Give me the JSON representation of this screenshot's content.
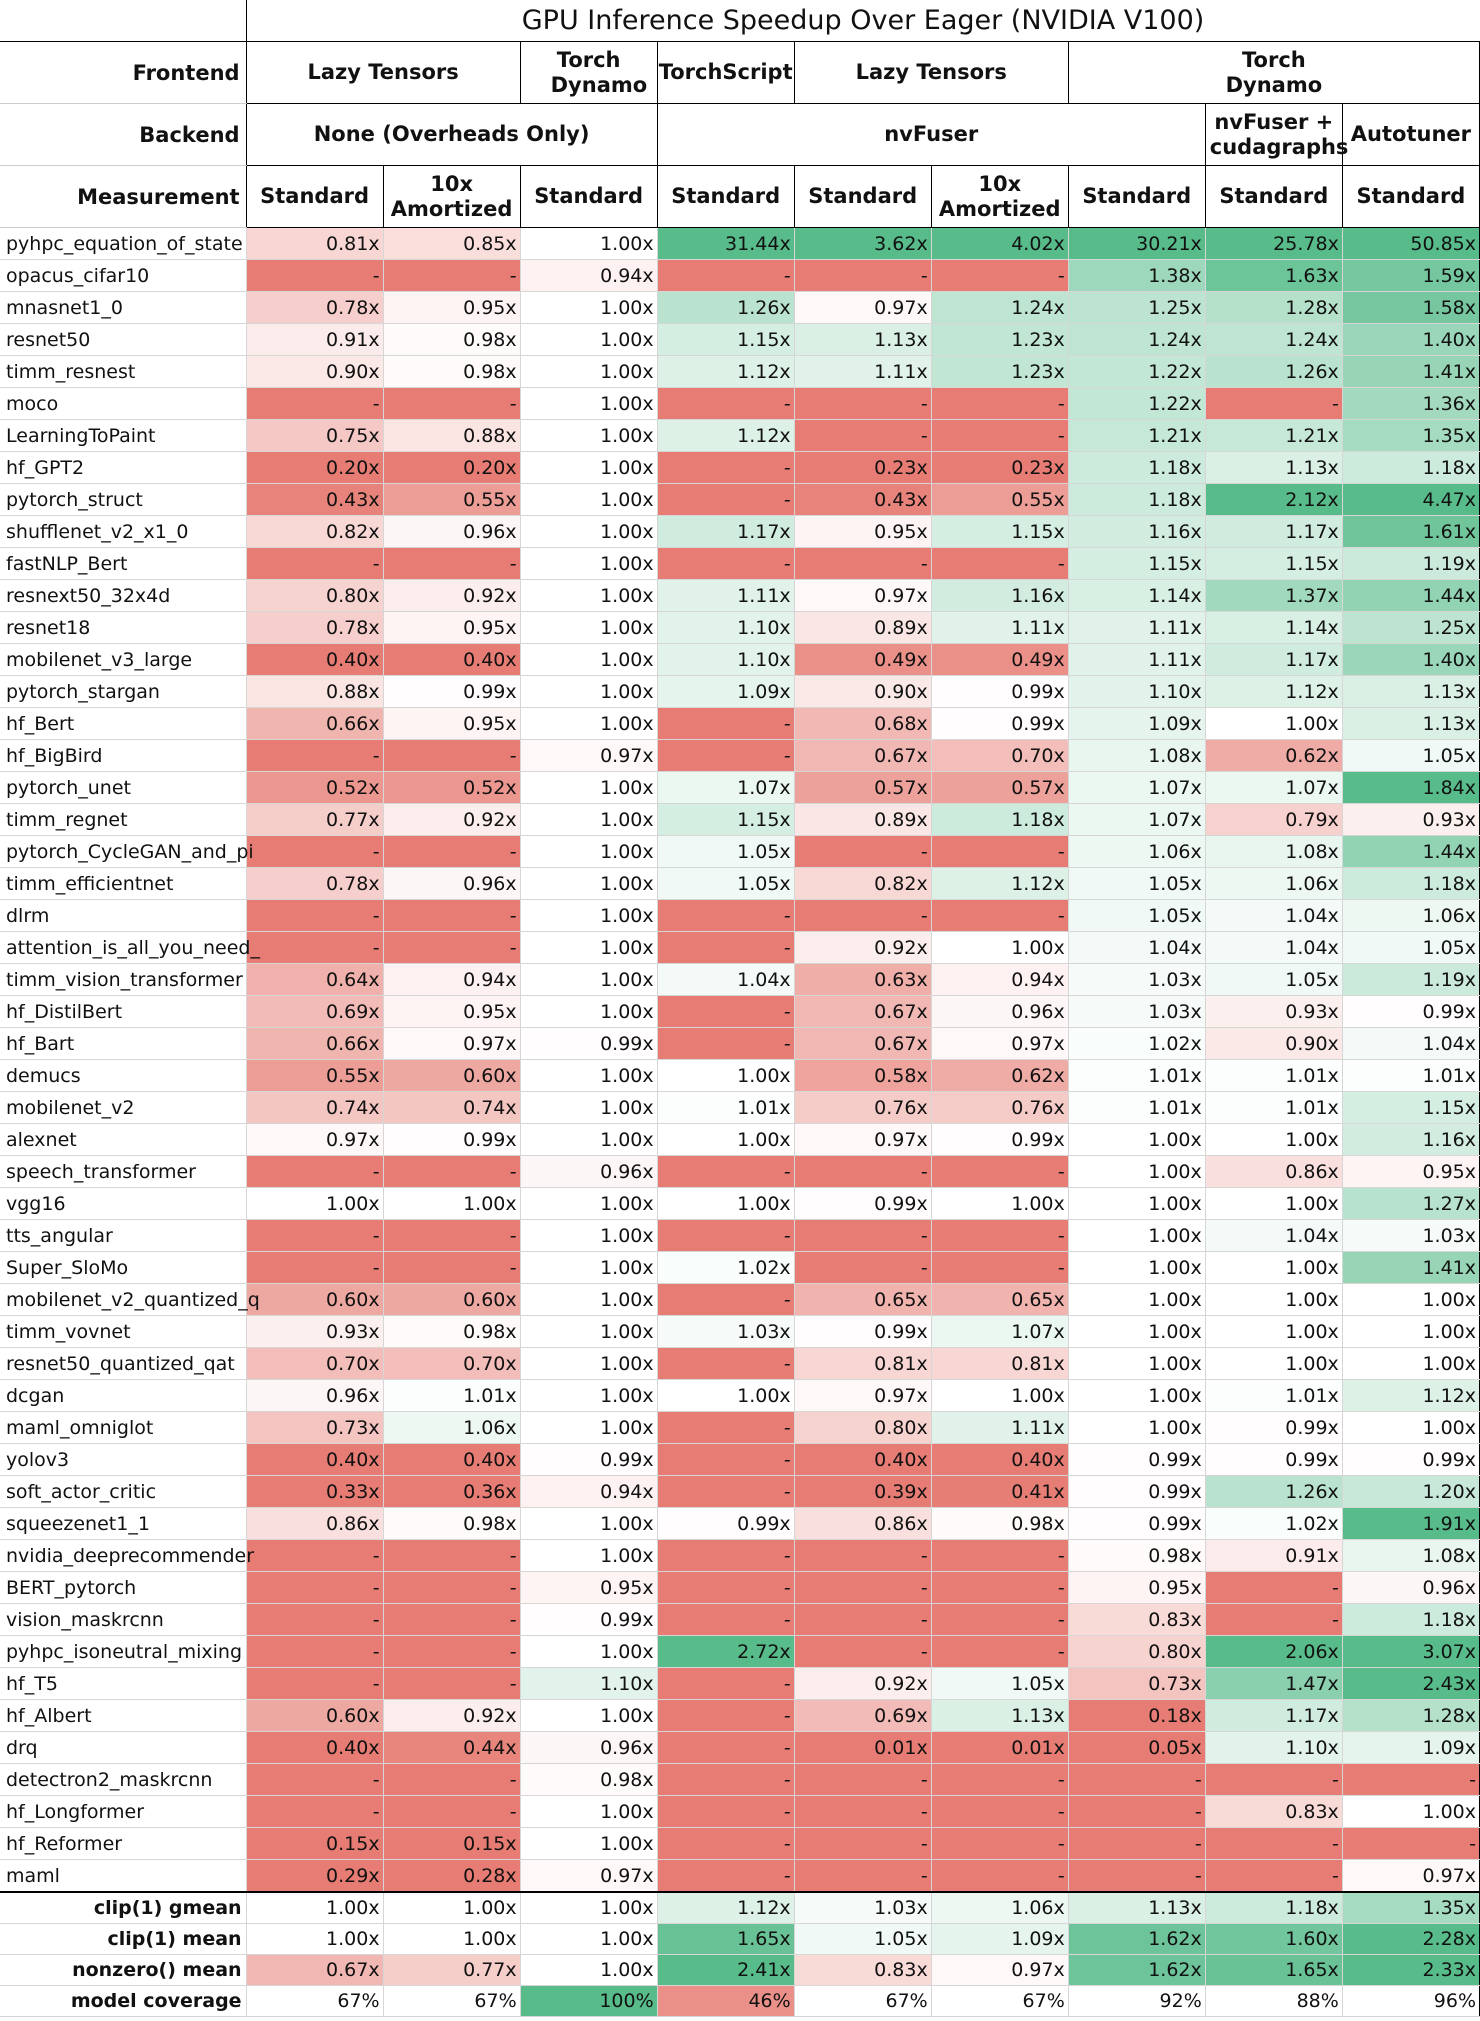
{
  "title": "GPU Inference Speedup Over Eager (NVIDIA V100)",
  "row_labels": {
    "frontend": "Frontend",
    "backend": "Backend",
    "measurement": "Measurement"
  },
  "frontend": [
    {
      "label": "Lazy Tensors",
      "span": 2
    },
    {
      "label": "Torch Dynamo",
      "span": 1
    },
    {
      "label": "TorchScript",
      "span": 1
    },
    {
      "label": "Lazy Tensors",
      "span": 2
    },
    {
      "label": "Torch Dynamo",
      "span": 3
    }
  ],
  "backend": [
    {
      "label": "None (Overheads Only)",
      "span": 3
    },
    {
      "label": "nvFuser",
      "span": 4
    },
    {
      "label": "nvFuser + cudagraphs",
      "span": 1
    },
    {
      "label": "Autotuner",
      "span": 1
    }
  ],
  "measurement": [
    "Standard",
    "10x Amortized",
    "Standard",
    "Standard",
    "Standard",
    "10x Amortized",
    "Standard",
    "Standard",
    "Standard"
  ],
  "rows": [
    [
      "pyhpc_equation_of_state",
      "0.81x",
      "0.85x",
      "1.00x",
      "31.44x",
      "3.62x",
      "4.02x",
      "30.21x",
      "25.78x",
      "50.85x"
    ],
    [
      "opacus_cifar10",
      "-",
      "-",
      "0.94x",
      "-",
      "-",
      "-",
      "1.38x",
      "1.63x",
      "1.59x"
    ],
    [
      "mnasnet1_0",
      "0.78x",
      "0.95x",
      "1.00x",
      "1.26x",
      "0.97x",
      "1.24x",
      "1.25x",
      "1.28x",
      "1.58x"
    ],
    [
      "resnet50",
      "0.91x",
      "0.98x",
      "1.00x",
      "1.15x",
      "1.13x",
      "1.23x",
      "1.24x",
      "1.24x",
      "1.40x"
    ],
    [
      "timm_resnest",
      "0.90x",
      "0.98x",
      "1.00x",
      "1.12x",
      "1.11x",
      "1.23x",
      "1.22x",
      "1.26x",
      "1.41x"
    ],
    [
      "moco",
      "-",
      "-",
      "1.00x",
      "-",
      "-",
      "-",
      "1.22x",
      "-",
      "1.36x"
    ],
    [
      "LearningToPaint",
      "0.75x",
      "0.88x",
      "1.00x",
      "1.12x",
      "-",
      "-",
      "1.21x",
      "1.21x",
      "1.35x"
    ],
    [
      "hf_GPT2",
      "0.20x",
      "0.20x",
      "1.00x",
      "-",
      "0.23x",
      "0.23x",
      "1.18x",
      "1.13x",
      "1.18x"
    ],
    [
      "pytorch_struct",
      "0.43x",
      "0.55x",
      "1.00x",
      "-",
      "0.43x",
      "0.55x",
      "1.18x",
      "2.12x",
      "4.47x"
    ],
    [
      "shufflenet_v2_x1_0",
      "0.82x",
      "0.96x",
      "1.00x",
      "1.17x",
      "0.95x",
      "1.15x",
      "1.16x",
      "1.17x",
      "1.61x"
    ],
    [
      "fastNLP_Bert",
      "-",
      "-",
      "1.00x",
      "-",
      "-",
      "-",
      "1.15x",
      "1.15x",
      "1.19x"
    ],
    [
      "resnext50_32x4d",
      "0.80x",
      "0.92x",
      "1.00x",
      "1.11x",
      "0.97x",
      "1.16x",
      "1.14x",
      "1.37x",
      "1.44x"
    ],
    [
      "resnet18",
      "0.78x",
      "0.95x",
      "1.00x",
      "1.10x",
      "0.89x",
      "1.11x",
      "1.11x",
      "1.14x",
      "1.25x"
    ],
    [
      "mobilenet_v3_large",
      "0.40x",
      "0.40x",
      "1.00x",
      "1.10x",
      "0.49x",
      "0.49x",
      "1.11x",
      "1.17x",
      "1.40x"
    ],
    [
      "pytorch_stargan",
      "0.88x",
      "0.99x",
      "1.00x",
      "1.09x",
      "0.90x",
      "0.99x",
      "1.10x",
      "1.12x",
      "1.13x"
    ],
    [
      "hf_Bert",
      "0.66x",
      "0.95x",
      "1.00x",
      "-",
      "0.68x",
      "0.99x",
      "1.09x",
      "1.00x",
      "1.13x"
    ],
    [
      "hf_BigBird",
      "-",
      "-",
      "0.97x",
      "-",
      "0.67x",
      "0.70x",
      "1.08x",
      "0.62x",
      "1.05x"
    ],
    [
      "pytorch_unet",
      "0.52x",
      "0.52x",
      "1.00x",
      "1.07x",
      "0.57x",
      "0.57x",
      "1.07x",
      "1.07x",
      "1.84x"
    ],
    [
      "timm_regnet",
      "0.77x",
      "0.92x",
      "1.00x",
      "1.15x",
      "0.89x",
      "1.18x",
      "1.07x",
      "0.79x",
      "0.93x"
    ],
    [
      "pytorch_CycleGAN_and_pi",
      "-",
      "-",
      "1.00x",
      "1.05x",
      "-",
      "-",
      "1.06x",
      "1.08x",
      "1.44x"
    ],
    [
      "timm_efficientnet",
      "0.78x",
      "0.96x",
      "1.00x",
      "1.05x",
      "0.82x",
      "1.12x",
      "1.05x",
      "1.06x",
      "1.18x"
    ],
    [
      "dlrm",
      "-",
      "-",
      "1.00x",
      "-",
      "-",
      "-",
      "1.05x",
      "1.04x",
      "1.06x"
    ],
    [
      "attention_is_all_you_need_",
      "-",
      "-",
      "1.00x",
      "-",
      "0.92x",
      "1.00x",
      "1.04x",
      "1.04x",
      "1.05x"
    ],
    [
      "timm_vision_transformer",
      "0.64x",
      "0.94x",
      "1.00x",
      "1.04x",
      "0.63x",
      "0.94x",
      "1.03x",
      "1.05x",
      "1.19x"
    ],
    [
      "hf_DistilBert",
      "0.69x",
      "0.95x",
      "1.00x",
      "-",
      "0.67x",
      "0.96x",
      "1.03x",
      "0.93x",
      "0.99x"
    ],
    [
      "hf_Bart",
      "0.66x",
      "0.97x",
      "0.99x",
      "-",
      "0.67x",
      "0.97x",
      "1.02x",
      "0.90x",
      "1.04x"
    ],
    [
      "demucs",
      "0.55x",
      "0.60x",
      "1.00x",
      "1.00x",
      "0.58x",
      "0.62x",
      "1.01x",
      "1.01x",
      "1.01x"
    ],
    [
      "mobilenet_v2",
      "0.74x",
      "0.74x",
      "1.00x",
      "1.01x",
      "0.76x",
      "0.76x",
      "1.01x",
      "1.01x",
      "1.15x"
    ],
    [
      "alexnet",
      "0.97x",
      "0.99x",
      "1.00x",
      "1.00x",
      "0.97x",
      "0.99x",
      "1.00x",
      "1.00x",
      "1.16x"
    ],
    [
      "speech_transformer",
      "-",
      "-",
      "0.96x",
      "-",
      "-",
      "-",
      "1.00x",
      "0.86x",
      "0.95x"
    ],
    [
      "vgg16",
      "1.00x",
      "1.00x",
      "1.00x",
      "1.00x",
      "0.99x",
      "1.00x",
      "1.00x",
      "1.00x",
      "1.27x"
    ],
    [
      "tts_angular",
      "-",
      "-",
      "1.00x",
      "-",
      "-",
      "-",
      "1.00x",
      "1.04x",
      "1.03x"
    ],
    [
      "Super_SloMo",
      "-",
      "-",
      "1.00x",
      "1.02x",
      "-",
      "-",
      "1.00x",
      "1.00x",
      "1.41x"
    ],
    [
      "mobilenet_v2_quantized_q",
      "0.60x",
      "0.60x",
      "1.00x",
      "-",
      "0.65x",
      "0.65x",
      "1.00x",
      "1.00x",
      "1.00x"
    ],
    [
      "timm_vovnet",
      "0.93x",
      "0.98x",
      "1.00x",
      "1.03x",
      "0.99x",
      "1.07x",
      "1.00x",
      "1.00x",
      "1.00x"
    ],
    [
      "resnet50_quantized_qat",
      "0.70x",
      "0.70x",
      "1.00x",
      "-",
      "0.81x",
      "0.81x",
      "1.00x",
      "1.00x",
      "1.00x"
    ],
    [
      "dcgan",
      "0.96x",
      "1.01x",
      "1.00x",
      "1.00x",
      "0.97x",
      "1.00x",
      "1.00x",
      "1.01x",
      "1.12x"
    ],
    [
      "maml_omniglot",
      "0.73x",
      "1.06x",
      "1.00x",
      "-",
      "0.80x",
      "1.11x",
      "1.00x",
      "0.99x",
      "1.00x"
    ],
    [
      "yolov3",
      "0.40x",
      "0.40x",
      "0.99x",
      "-",
      "0.40x",
      "0.40x",
      "0.99x",
      "0.99x",
      "0.99x"
    ],
    [
      "soft_actor_critic",
      "0.33x",
      "0.36x",
      "0.94x",
      "-",
      "0.39x",
      "0.41x",
      "0.99x",
      "1.26x",
      "1.20x"
    ],
    [
      "squeezenet1_1",
      "0.86x",
      "0.98x",
      "1.00x",
      "0.99x",
      "0.86x",
      "0.98x",
      "0.99x",
      "1.02x",
      "1.91x"
    ],
    [
      "nvidia_deeprecommender",
      "-",
      "-",
      "1.00x",
      "-",
      "-",
      "-",
      "0.98x",
      "0.91x",
      "1.08x"
    ],
    [
      "BERT_pytorch",
      "-",
      "-",
      "0.95x",
      "-",
      "-",
      "-",
      "0.95x",
      "-",
      "0.96x"
    ],
    [
      "vision_maskrcnn",
      "-",
      "-",
      "0.99x",
      "-",
      "-",
      "-",
      "0.83x",
      "-",
      "1.18x"
    ],
    [
      "pyhpc_isoneutral_mixing",
      "-",
      "-",
      "1.00x",
      "2.72x",
      "-",
      "-",
      "0.80x",
      "2.06x",
      "3.07x"
    ],
    [
      "hf_T5",
      "-",
      "-",
      "1.10x",
      "-",
      "0.92x",
      "1.05x",
      "0.73x",
      "1.47x",
      "2.43x"
    ],
    [
      "hf_Albert",
      "0.60x",
      "0.92x",
      "1.00x",
      "-",
      "0.69x",
      "1.13x",
      "0.18x",
      "1.17x",
      "1.28x"
    ],
    [
      "drq",
      "0.40x",
      "0.44x",
      "0.96x",
      "-",
      "0.01x",
      "0.01x",
      "0.05x",
      "1.10x",
      "1.09x"
    ],
    [
      "detectron2_maskrcnn",
      "-",
      "-",
      "0.98x",
      "-",
      "-",
      "-",
      "-",
      "-",
      "-"
    ],
    [
      "hf_Longformer",
      "-",
      "-",
      "1.00x",
      "-",
      "-",
      "-",
      "-",
      "0.83x",
      "1.00x"
    ],
    [
      "hf_Reformer",
      "0.15x",
      "0.15x",
      "1.00x",
      "-",
      "-",
      "-",
      "-",
      "-",
      "-"
    ],
    [
      "maml",
      "0.29x",
      "0.28x",
      "0.97x",
      "-",
      "-",
      "-",
      "-",
      "-",
      "0.97x"
    ]
  ],
  "summary": [
    [
      "clip(1) gmean",
      "1.00x",
      "1.00x",
      "1.00x",
      "1.12x",
      "1.03x",
      "1.06x",
      "1.13x",
      "1.18x",
      "1.35x"
    ],
    [
      "clip(1) mean",
      "1.00x",
      "1.00x",
      "1.00x",
      "1.65x",
      "1.05x",
      "1.09x",
      "1.62x",
      "1.60x",
      "2.28x"
    ],
    [
      "nonzero() mean",
      "0.67x",
      "0.77x",
      "1.00x",
      "2.41x",
      "0.83x",
      "0.97x",
      "1.62x",
      "1.65x",
      "2.33x"
    ],
    [
      "model coverage",
      "67%",
      "67%",
      "100%",
      "46%",
      "67%",
      "67%",
      "92%",
      "88%",
      "96%"
    ]
  ],
  "colors": {
    "red": "#e67c73",
    "white": "#ffffff",
    "green": "#57bb8a"
  }
}
